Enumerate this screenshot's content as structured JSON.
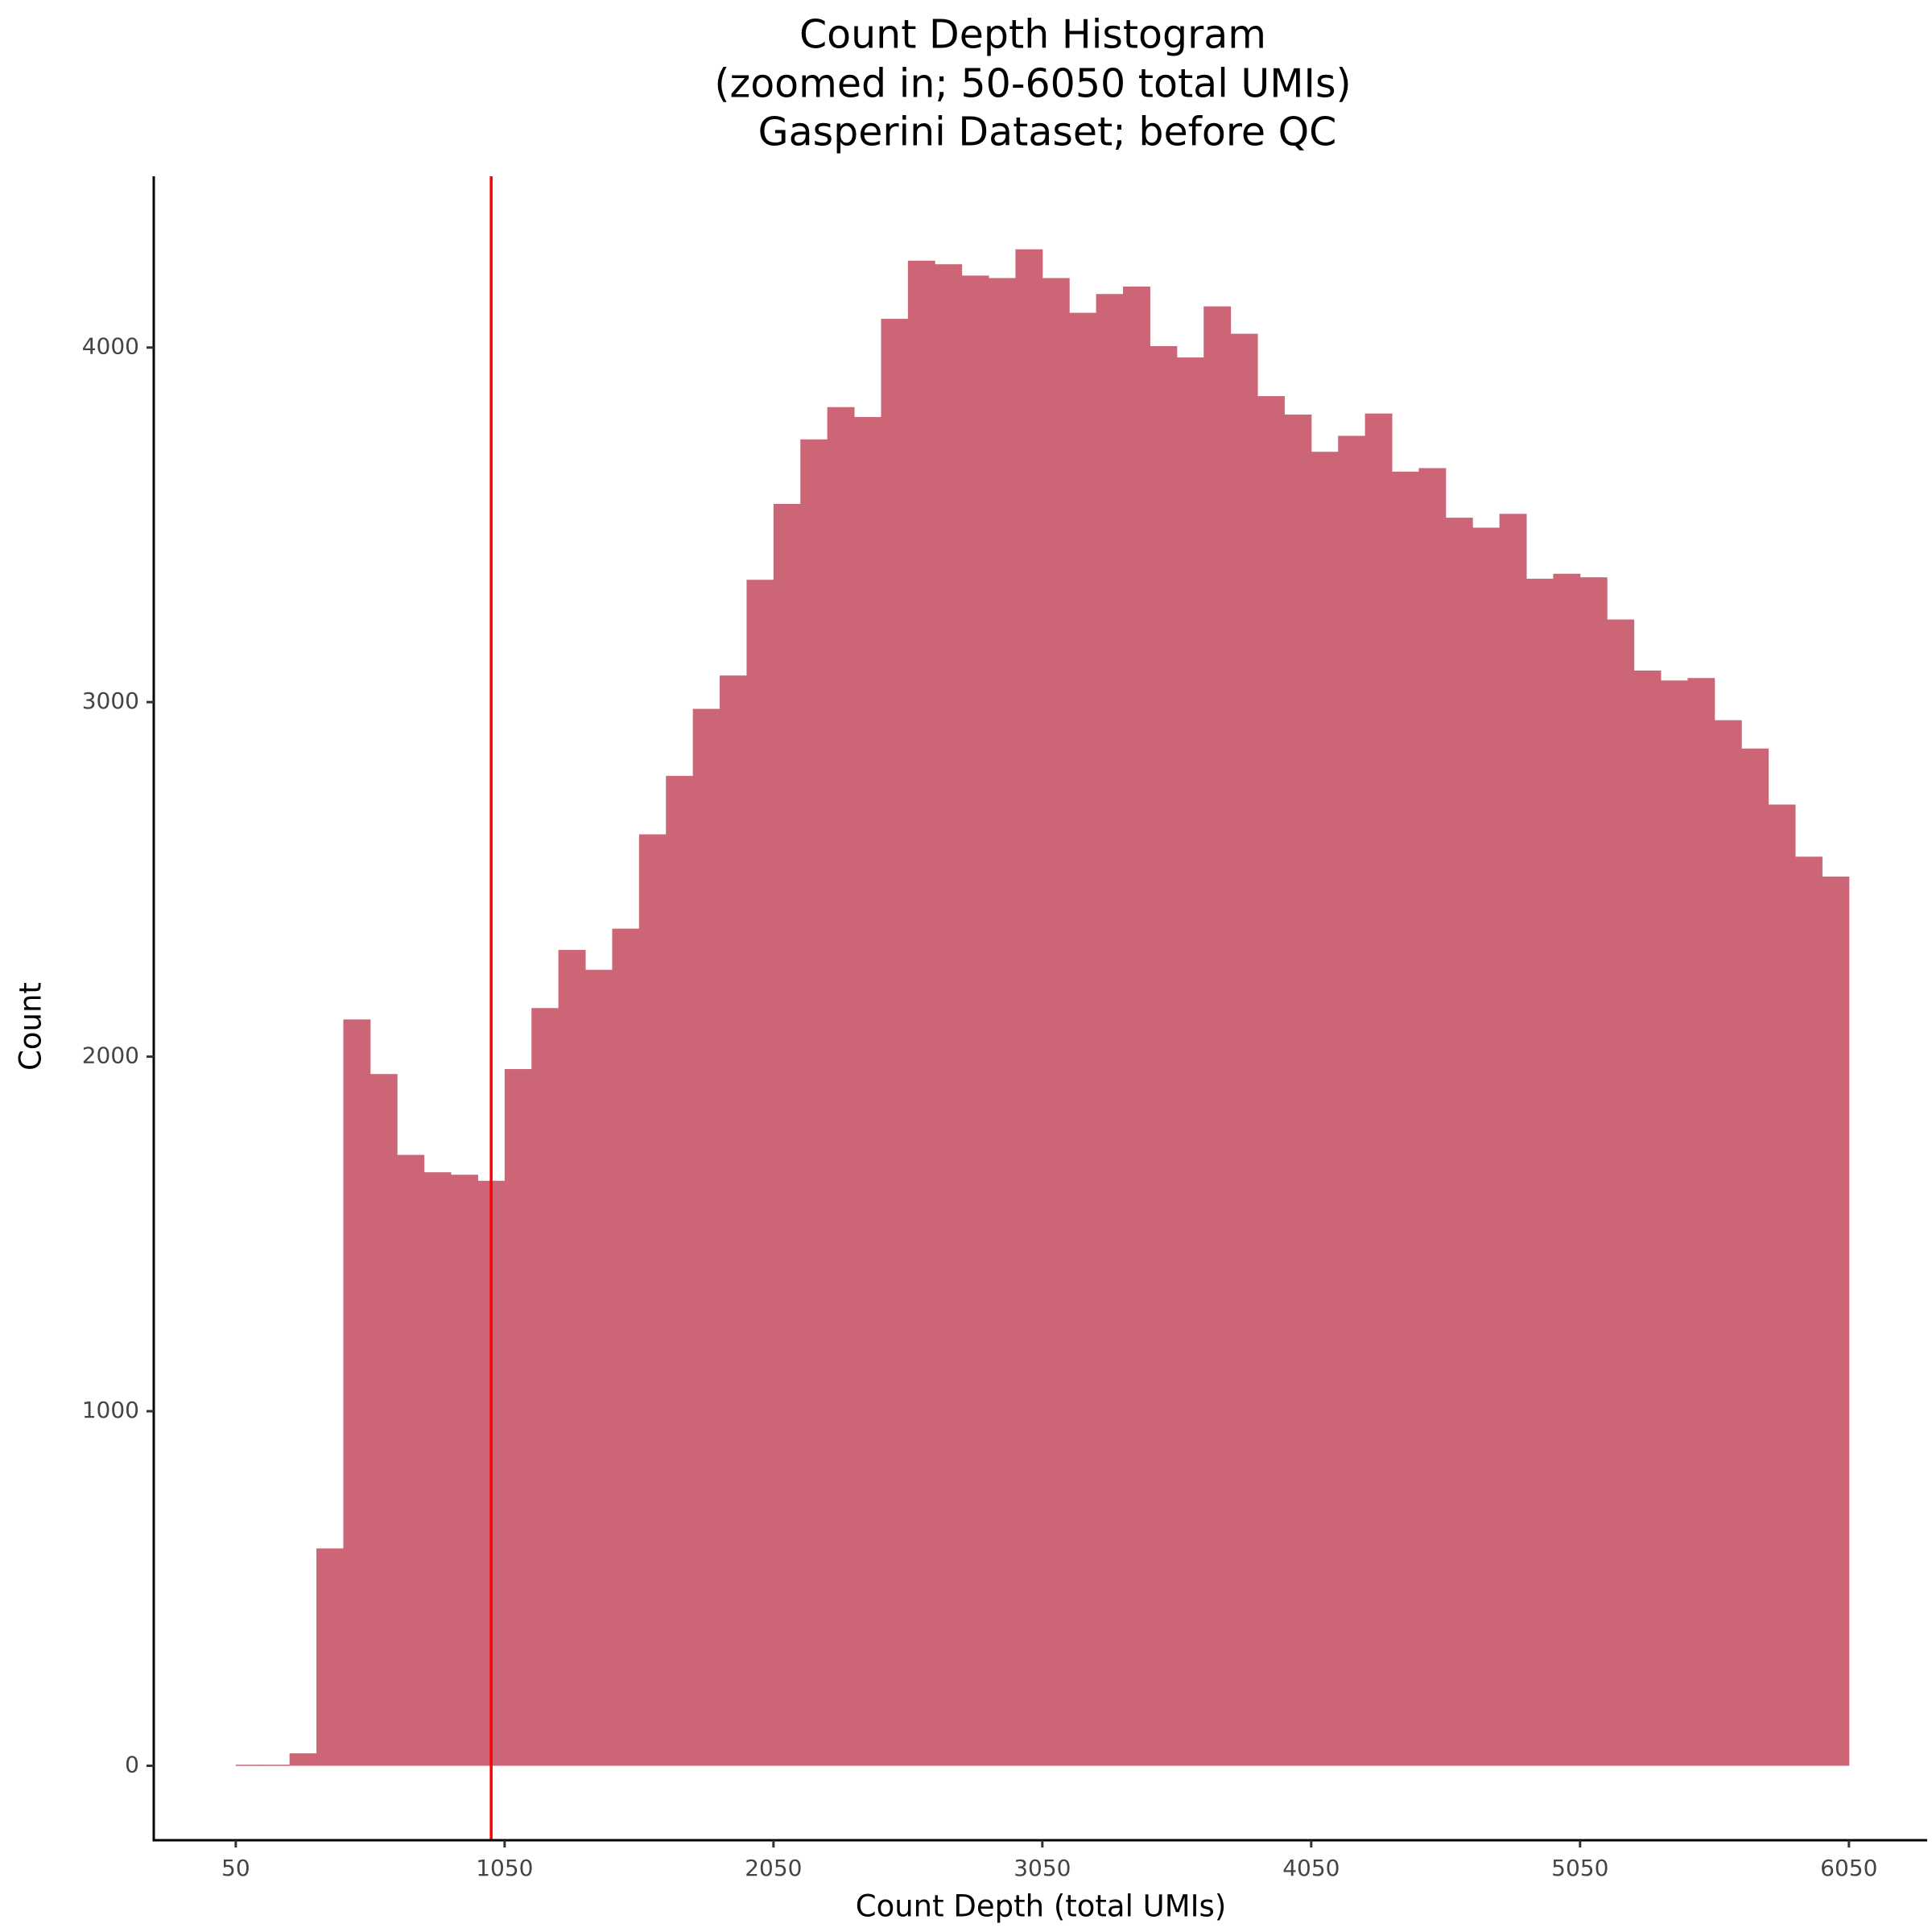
{
  "chart_data": {
    "type": "histogram",
    "title": [
      "Count Depth Histogram",
      "(zoomed in; 50-6050 total UMIs)",
      "Gasperini Dataset; before QC"
    ],
    "xlabel": "Count Depth (total UMIs)",
    "ylabel": "Count",
    "color": "#cc6677",
    "bins": [
      50,
      150,
      250,
      350,
      450,
      550,
      650,
      750,
      850,
      950,
      1050,
      1150,
      1250,
      1350,
      1450,
      1550,
      1650,
      1750,
      1850,
      1950,
      2050,
      2150,
      2250,
      2350,
      2450,
      2550,
      2650,
      2750,
      2850,
      2950,
      3050,
      3150,
      3250,
      3350,
      3450,
      3550,
      3650,
      3750,
      3850,
      3950,
      4050,
      4150,
      4250,
      4350,
      4450,
      4550,
      4650,
      4750,
      4850,
      4950,
      5050,
      5150,
      5250,
      5350,
      5450,
      5550,
      5650,
      5750,
      5850,
      5950,
      6050
    ],
    "counts": [
      3,
      3,
      35,
      613,
      2105,
      1951,
      1723,
      1674,
      1667,
      1650,
      1965,
      2137,
      2301,
      2245,
      2361,
      2627,
      2792,
      2981,
      3075,
      3345,
      3559,
      3741,
      3832,
      3804,
      4081,
      4245,
      4235,
      4203,
      4196,
      4277,
      4196,
      4098,
      4151,
      4172,
      4004,
      3972,
      4116,
      4039,
      3863,
      3811,
      3706,
      3751,
      3814,
      3650,
      3660,
      3520,
      3492,
      3531,
      3348,
      3362,
      3352,
      3233,
      3089,
      3061,
      3068,
      2949,
      2869,
      2711,
      2564,
      2508
    ],
    "vline": {
      "value": 1000,
      "color": "#ff0000"
    },
    "xlim": [
      -255,
      6341
    ],
    "ylim": [
      -210,
      4483
    ],
    "xticks": [
      50,
      1050,
      2050,
      3050,
      4050,
      5050,
      6050
    ],
    "yticks": [
      0,
      1000,
      2000,
      3000,
      4000
    ],
    "grid": false
  }
}
